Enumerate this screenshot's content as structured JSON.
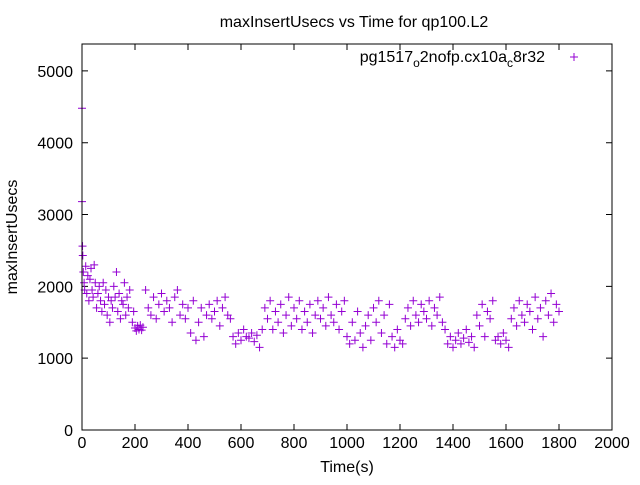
{
  "chart_data": {
    "type": "scatter",
    "title": "maxInsertUsecs vs Time for qp100.L2",
    "xlabel": "Time(s)",
    "ylabel": "maxInsertUsecs",
    "xlim": [
      0,
      2000
    ],
    "ylim": [
      0,
      5375
    ],
    "xticks": [
      "0",
      "200",
      "400",
      "600",
      "800",
      "1000",
      "1200",
      "1400",
      "1600",
      "1800",
      "2000"
    ],
    "yticks": [
      "0",
      "1000",
      "2000",
      "3000",
      "4000",
      "5000"
    ],
    "grid": false,
    "legend_position": "top-right",
    "series": [
      {
        "name_parts": {
          "a": "pg1517",
          "sub1": "o",
          "b": "2nofp.cx10a",
          "sub2": "c",
          "c": "8r32"
        },
        "name": "pg1517_o2nofp.cx10a_c8r32",
        "color": "#9400d3",
        "marker": "+",
        "points": [
          [
            0,
            4480
          ],
          [
            0,
            3180
          ],
          [
            2,
            2560
          ],
          [
            3,
            2430
          ],
          [
            5,
            2200
          ],
          [
            8,
            2050
          ],
          [
            10,
            1950
          ],
          [
            14,
            2280
          ],
          [
            18,
            1900
          ],
          [
            22,
            2150
          ],
          [
            26,
            1800
          ],
          [
            30,
            2100
          ],
          [
            34,
            2250
          ],
          [
            38,
            1950
          ],
          [
            42,
            1850
          ],
          [
            46,
            2300
          ],
          [
            50,
            2050
          ],
          [
            55,
            1700
          ],
          [
            60,
            1900
          ],
          [
            65,
            2000
          ],
          [
            70,
            1800
          ],
          [
            75,
            1650
          ],
          [
            80,
            2050
          ],
          [
            85,
            1750
          ],
          [
            90,
            1950
          ],
          [
            95,
            1600
          ],
          [
            100,
            1850
          ],
          [
            105,
            1500
          ],
          [
            110,
            1800
          ],
          [
            115,
            1700
          ],
          [
            120,
            2000
          ],
          [
            125,
            1850
          ],
          [
            130,
            2200
          ],
          [
            135,
            1650
          ],
          [
            140,
            1900
          ],
          [
            145,
            1550
          ],
          [
            150,
            1800
          ],
          [
            155,
            1750
          ],
          [
            160,
            2050
          ],
          [
            165,
            1600
          ],
          [
            170,
            1850
          ],
          [
            175,
            1700
          ],
          [
            180,
            1950
          ],
          [
            190,
            1500
          ],
          [
            195,
            1650
          ],
          [
            200,
            1420
          ],
          [
            205,
            1380
          ],
          [
            210,
            1450
          ],
          [
            215,
            1400
          ],
          [
            220,
            1460
          ],
          [
            225,
            1390
          ],
          [
            230,
            1430
          ],
          [
            240,
            1950
          ],
          [
            250,
            1700
          ],
          [
            260,
            1600
          ],
          [
            270,
            1850
          ],
          [
            280,
            1550
          ],
          [
            290,
            1750
          ],
          [
            300,
            1900
          ],
          [
            310,
            1650
          ],
          [
            320,
            1800
          ],
          [
            330,
            1700
          ],
          [
            340,
            1500
          ],
          [
            350,
            1850
          ],
          [
            360,
            1950
          ],
          [
            370,
            1600
          ],
          [
            380,
            1750
          ],
          [
            390,
            1550
          ],
          [
            400,
            1700
          ],
          [
            410,
            1350
          ],
          [
            420,
            1800
          ],
          [
            430,
            1250
          ],
          [
            440,
            1500
          ],
          [
            450,
            1700
          ],
          [
            460,
            1300
          ],
          [
            470,
            1600
          ],
          [
            480,
            1750
          ],
          [
            490,
            1550
          ],
          [
            500,
            1650
          ],
          [
            510,
            1800
          ],
          [
            520,
            1450
          ],
          [
            530,
            1700
          ],
          [
            540,
            1850
          ],
          [
            550,
            1600
          ],
          [
            560,
            1550
          ],
          [
            570,
            1300
          ],
          [
            580,
            1200
          ],
          [
            590,
            1350
          ],
          [
            600,
            1250
          ],
          [
            610,
            1400
          ],
          [
            620,
            1300
          ],
          [
            630,
            1280
          ],
          [
            640,
            1350
          ],
          [
            650,
            1230
          ],
          [
            660,
            1320
          ],
          [
            670,
            1150
          ],
          [
            680,
            1400
          ],
          [
            690,
            1700
          ],
          [
            700,
            1550
          ],
          [
            710,
            1800
          ],
          [
            720,
            1400
          ],
          [
            730,
            1650
          ],
          [
            740,
            1500
          ],
          [
            750,
            1750
          ],
          [
            760,
            1350
          ],
          [
            770,
            1600
          ],
          [
            780,
            1850
          ],
          [
            790,
            1450
          ],
          [
            800,
            1700
          ],
          [
            810,
            1550
          ],
          [
            820,
            1800
          ],
          [
            830,
            1400
          ],
          [
            840,
            1650
          ],
          [
            850,
            1500
          ],
          [
            860,
            1750
          ],
          [
            870,
            1350
          ],
          [
            880,
            1600
          ],
          [
            890,
            1800
          ],
          [
            900,
            1550
          ],
          [
            910,
            1700
          ],
          [
            920,
            1450
          ],
          [
            930,
            1850
          ],
          [
            940,
            1600
          ],
          [
            950,
            1500
          ],
          [
            960,
            1750
          ],
          [
            970,
            1400
          ],
          [
            980,
            1650
          ],
          [
            990,
            1800
          ],
          [
            1000,
            1300
          ],
          [
            1010,
            1200
          ],
          [
            1020,
            1500
          ],
          [
            1030,
            1250
          ],
          [
            1040,
            1650
          ],
          [
            1050,
            1350
          ],
          [
            1060,
            1150
          ],
          [
            1070,
            1450
          ],
          [
            1080,
            1600
          ],
          [
            1090,
            1250
          ],
          [
            1100,
            1700
          ],
          [
            1110,
            1500
          ],
          [
            1120,
            1800
          ],
          [
            1130,
            1350
          ],
          [
            1140,
            1600
          ],
          [
            1150,
            1200
          ],
          [
            1160,
            1750
          ],
          [
            1170,
            1300
          ],
          [
            1180,
            1150
          ],
          [
            1190,
            1400
          ],
          [
            1200,
            1250
          ],
          [
            1210,
            1200
          ],
          [
            1220,
            1550
          ],
          [
            1230,
            1700
          ],
          [
            1240,
            1450
          ],
          [
            1250,
            1800
          ],
          [
            1260,
            1600
          ],
          [
            1270,
            1500
          ],
          [
            1280,
            1750
          ],
          [
            1290,
            1650
          ],
          [
            1300,
            1550
          ],
          [
            1310,
            1800
          ],
          [
            1320,
            1450
          ],
          [
            1330,
            1700
          ],
          [
            1340,
            1600
          ],
          [
            1350,
            1850
          ],
          [
            1360,
            1500
          ],
          [
            1370,
            1400
          ],
          [
            1380,
            1200
          ],
          [
            1390,
            1300
          ],
          [
            1400,
            1150
          ],
          [
            1410,
            1250
          ],
          [
            1420,
            1350
          ],
          [
            1430,
            1200
          ],
          [
            1440,
            1280
          ],
          [
            1450,
            1400
          ],
          [
            1460,
            1220
          ],
          [
            1470,
            1300
          ],
          [
            1480,
            1150
          ],
          [
            1490,
            1600
          ],
          [
            1500,
            1450
          ],
          [
            1510,
            1750
          ],
          [
            1520,
            1300
          ],
          [
            1530,
            1650
          ],
          [
            1540,
            1550
          ],
          [
            1550,
            1800
          ],
          [
            1560,
            1250
          ],
          [
            1570,
            1300
          ],
          [
            1580,
            1200
          ],
          [
            1590,
            1350
          ],
          [
            1600,
            1250
          ],
          [
            1610,
            1150
          ],
          [
            1620,
            1550
          ],
          [
            1630,
            1700
          ],
          [
            1640,
            1450
          ],
          [
            1650,
            1800
          ],
          [
            1660,
            1600
          ],
          [
            1670,
            1500
          ],
          [
            1680,
            1750
          ],
          [
            1690,
            1650
          ],
          [
            1700,
            1400
          ],
          [
            1710,
            1850
          ],
          [
            1720,
            1550
          ],
          [
            1730,
            1700
          ],
          [
            1740,
            1300
          ],
          [
            1750,
            1800
          ],
          [
            1760,
            1600
          ],
          [
            1770,
            1900
          ],
          [
            1780,
            1500
          ],
          [
            1790,
            1750
          ],
          [
            1800,
            1650
          ]
        ]
      }
    ]
  }
}
